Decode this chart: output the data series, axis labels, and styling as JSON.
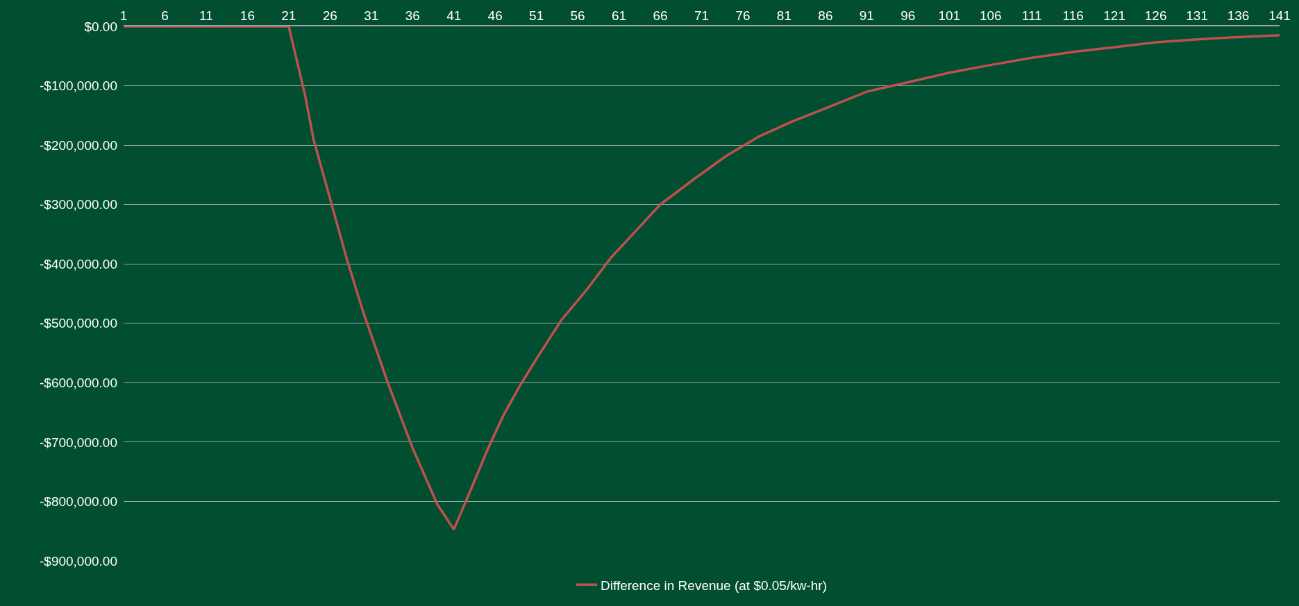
{
  "chart_data": {
    "type": "line",
    "x": [
      1,
      21,
      23,
      24,
      26,
      28,
      30,
      33,
      36,
      39,
      41,
      43,
      45,
      47,
      49,
      51,
      54,
      57,
      60,
      63,
      66,
      70,
      74,
      78,
      82,
      86,
      91,
      96,
      101,
      106,
      111,
      116,
      121,
      126,
      131,
      136,
      141
    ],
    "series": [
      {
        "name": "Difference in Revenue (at $0.05/kw-hr)",
        "color": "#c0504d",
        "values": [
          0,
          0,
          -117000,
          -190000,
          -290000,
          -390000,
          -480000,
          -600000,
          -710000,
          -805000,
          -847000,
          -782000,
          -715000,
          -655000,
          -605000,
          -560000,
          -495000,
          -445000,
          -390000,
          -345000,
          -300000,
          -258000,
          -218000,
          -185000,
          -160000,
          -138000,
          -110000,
          -94000,
          -78000,
          -65000,
          -53000,
          -43000,
          -35000,
          -27000,
          -22000,
          -18000,
          -15000
        ]
      }
    ],
    "xlim": [
      1,
      141
    ],
    "xticks": [
      1,
      6,
      11,
      16,
      21,
      26,
      31,
      36,
      41,
      46,
      51,
      56,
      61,
      66,
      71,
      76,
      81,
      86,
      91,
      96,
      101,
      106,
      111,
      116,
      121,
      126,
      131,
      136,
      141
    ],
    "ylim": [
      -900000,
      0
    ],
    "yticks": [
      {
        "value": 0,
        "label": "$0.00"
      },
      {
        "value": -100000,
        "label": "-$100,000.00"
      },
      {
        "value": -200000,
        "label": "-$200,000.00"
      },
      {
        "value": -300000,
        "label": "-$300,000.00"
      },
      {
        "value": -400000,
        "label": "-$400,000.00"
      },
      {
        "value": -500000,
        "label": "-$500,000.00"
      },
      {
        "value": -600000,
        "label": "-$600,000.00"
      },
      {
        "value": -700000,
        "label": "-$700,000.00"
      },
      {
        "value": -800000,
        "label": "-$800,000.00"
      },
      {
        "value": -900000,
        "label": "-$900,000.00"
      }
    ],
    "grid": "y",
    "legend": "bottom",
    "marker": "none",
    "line_style": "solid"
  }
}
